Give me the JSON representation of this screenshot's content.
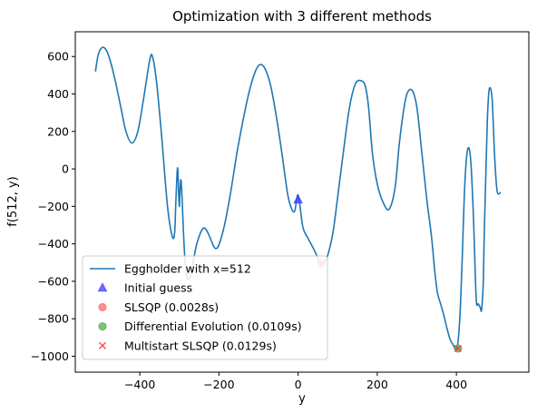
{
  "chart_data": {
    "type": "line",
    "title": "Optimization with 3 different methods",
    "xlabel": "y",
    "ylabel": "f(512, y)",
    "xlim": [
      -563,
      583
    ],
    "ylim": [
      -1085,
      732
    ],
    "xticks": [
      -400,
      -200,
      0,
      200,
      400
    ],
    "xtick_labels": [
      "−400",
      "−200",
      "0",
      "200",
      "400"
    ],
    "yticks": [
      -1000,
      -800,
      -600,
      -400,
      -200,
      0,
      200,
      400,
      600
    ],
    "ytick_labels": [
      "−1000",
      "−800",
      "−600",
      "−400",
      "−200",
      "0",
      "200",
      "400",
      "600"
    ],
    "grid": false,
    "legend_position": "lower-left",
    "series": [
      {
        "name": "Eggholder with x=512",
        "kind": "line",
        "color": "#1f77b4",
        "x": [
          -512,
          -505,
          -495,
          -485,
          -475,
          -462,
          -448,
          -435,
          -420,
          -405,
          -390,
          -375,
          -368,
          -358,
          -345,
          -330,
          -318,
          -312,
          -309,
          -306,
          -304,
          -302,
          -300,
          -298,
          -296,
          -293,
          -290,
          -286,
          -280,
          -274,
          -268,
          -262,
          -256,
          -250,
          -244,
          -238,
          -232,
          -226,
          -220,
          -214,
          -208,
          -200,
          -186,
          -170,
          -155,
          -140,
          -125,
          -110,
          -98,
          -85,
          -70,
          -55,
          -40,
          -25,
          -10,
          0,
          12,
          25,
          40,
          52,
          58,
          65,
          75,
          88,
          100,
          115,
          130,
          145,
          160,
          170,
          178,
          188,
          200,
          215,
          230,
          245,
          255,
          265,
          275,
          288,
          300,
          312,
          325,
          337,
          345,
          352,
          360,
          368,
          376,
          384,
          392,
          397,
          400,
          403,
          406,
          410,
          415,
          420,
          426,
          432,
          437,
          442,
          445,
          448,
          451,
          455,
          460,
          463,
          465,
          468,
          470,
          474,
          478,
          482,
          486,
          490,
          493,
          497,
          503,
          512
        ],
        "y": [
          520,
          610,
          648,
          635,
          580,
          470,
          330,
          200,
          138,
          200,
          380,
          580,
          600,
          470,
          180,
          -200,
          -360,
          -340,
          -180,
          -30,
          0,
          -120,
          -200,
          -100,
          -60,
          -160,
          -320,
          -480,
          -580,
          -580,
          -530,
          -460,
          -400,
          -360,
          -330,
          -315,
          -325,
          -350,
          -380,
          -410,
          -425,
          -405,
          -300,
          -120,
          80,
          250,
          400,
          510,
          555,
          540,
          450,
          280,
          70,
          -150,
          -230,
          -140,
          -310,
          -370,
          -430,
          -485,
          -505,
          -500,
          -460,
          -340,
          -150,
          100,
          330,
          455,
          470,
          440,
          330,
          80,
          -80,
          -180,
          -215,
          -100,
          120,
          290,
          400,
          420,
          330,
          100,
          -160,
          -360,
          -540,
          -660,
          -720,
          -780,
          -850,
          -910,
          -940,
          -960,
          -962,
          -940,
          -880,
          -740,
          -460,
          -140,
          70,
          110,
          20,
          -200,
          -380,
          -590,
          -720,
          -720,
          -740,
          -760,
          -720,
          -600,
          -380,
          -60,
          250,
          410,
          430,
          380,
          250,
          50,
          -120,
          -125
        ]
      },
      {
        "name": "Initial guess",
        "kind": "marker",
        "marker": "triangle",
        "color": "#3b3bff",
        "x": [
          0
        ],
        "y": [
          -165
        ]
      },
      {
        "name": "SLSQP (0.0028s)",
        "kind": "marker",
        "marker": "circle",
        "color": "#ff6b6b",
        "x": [
          58
        ],
        "y": [
          -506
        ]
      },
      {
        "name": "Differential Evolution (0.0109s)",
        "kind": "marker",
        "marker": "circle",
        "color": "#4caf50",
        "x": [
          404
        ],
        "y": [
          -959
        ]
      },
      {
        "name": "Multistart SLSQP (0.0129s)",
        "kind": "marker",
        "marker": "x",
        "color": "#ff3b3b",
        "x": [
          404
        ],
        "y": [
          -959
        ]
      }
    ]
  }
}
